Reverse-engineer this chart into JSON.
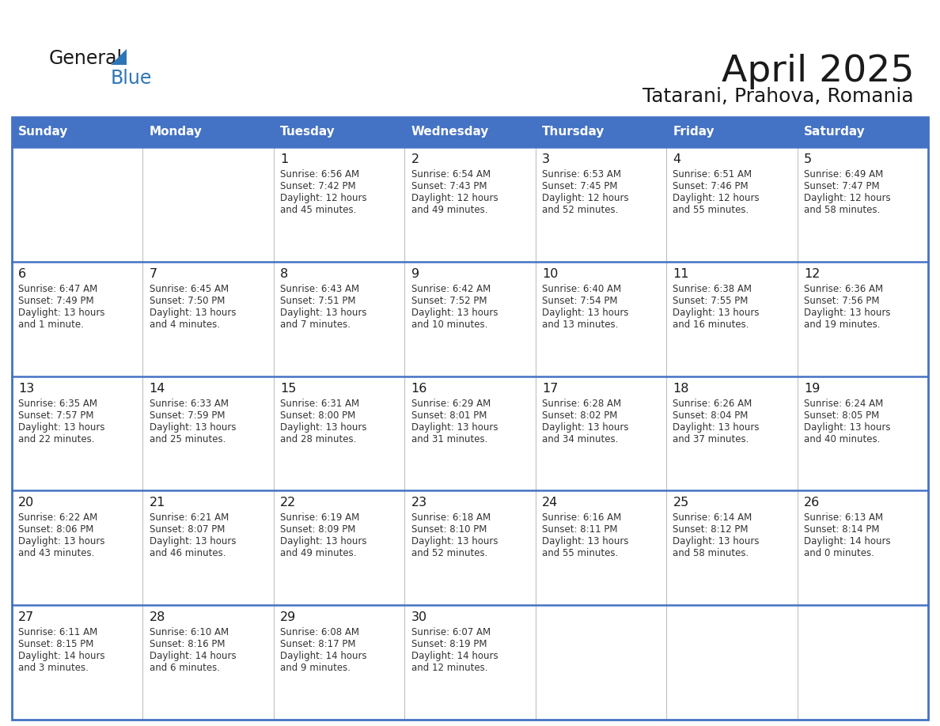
{
  "title": "April 2025",
  "subtitle": "Tatarani, Prahova, Romania",
  "days_of_week": [
    "Sunday",
    "Monday",
    "Tuesday",
    "Wednesday",
    "Thursday",
    "Friday",
    "Saturday"
  ],
  "header_bg_color": "#4472C4",
  "header_text_color": "#FFFFFF",
  "cell_bg_color": "#FFFFFF",
  "border_color": "#4472C4",
  "row_divider_color": "#4472C4",
  "title_color": "#1a1a1a",
  "subtitle_color": "#1a1a1a",
  "day_number_color": "#1a1a1a",
  "cell_text_color": "#333333",
  "logo_general_color": "#1a1a1a",
  "logo_blue_color": "#2E75B6",
  "weeks": [
    [
      {
        "day": null,
        "data": null
      },
      {
        "day": null,
        "data": null
      },
      {
        "day": 1,
        "data": {
          "sunrise": "6:56 AM",
          "sunset": "7:42 PM",
          "daylight_line1": "Daylight: 12 hours",
          "daylight_line2": "and 45 minutes."
        }
      },
      {
        "day": 2,
        "data": {
          "sunrise": "6:54 AM",
          "sunset": "7:43 PM",
          "daylight_line1": "Daylight: 12 hours",
          "daylight_line2": "and 49 minutes."
        }
      },
      {
        "day": 3,
        "data": {
          "sunrise": "6:53 AM",
          "sunset": "7:45 PM",
          "daylight_line1": "Daylight: 12 hours",
          "daylight_line2": "and 52 minutes."
        }
      },
      {
        "day": 4,
        "data": {
          "sunrise": "6:51 AM",
          "sunset": "7:46 PM",
          "daylight_line1": "Daylight: 12 hours",
          "daylight_line2": "and 55 minutes."
        }
      },
      {
        "day": 5,
        "data": {
          "sunrise": "6:49 AM",
          "sunset": "7:47 PM",
          "daylight_line1": "Daylight: 12 hours",
          "daylight_line2": "and 58 minutes."
        }
      }
    ],
    [
      {
        "day": 6,
        "data": {
          "sunrise": "6:47 AM",
          "sunset": "7:49 PM",
          "daylight_line1": "Daylight: 13 hours",
          "daylight_line2": "and 1 minute."
        }
      },
      {
        "day": 7,
        "data": {
          "sunrise": "6:45 AM",
          "sunset": "7:50 PM",
          "daylight_line1": "Daylight: 13 hours",
          "daylight_line2": "and 4 minutes."
        }
      },
      {
        "day": 8,
        "data": {
          "sunrise": "6:43 AM",
          "sunset": "7:51 PM",
          "daylight_line1": "Daylight: 13 hours",
          "daylight_line2": "and 7 minutes."
        }
      },
      {
        "day": 9,
        "data": {
          "sunrise": "6:42 AM",
          "sunset": "7:52 PM",
          "daylight_line1": "Daylight: 13 hours",
          "daylight_line2": "and 10 minutes."
        }
      },
      {
        "day": 10,
        "data": {
          "sunrise": "6:40 AM",
          "sunset": "7:54 PM",
          "daylight_line1": "Daylight: 13 hours",
          "daylight_line2": "and 13 minutes."
        }
      },
      {
        "day": 11,
        "data": {
          "sunrise": "6:38 AM",
          "sunset": "7:55 PM",
          "daylight_line1": "Daylight: 13 hours",
          "daylight_line2": "and 16 minutes."
        }
      },
      {
        "day": 12,
        "data": {
          "sunrise": "6:36 AM",
          "sunset": "7:56 PM",
          "daylight_line1": "Daylight: 13 hours",
          "daylight_line2": "and 19 minutes."
        }
      }
    ],
    [
      {
        "day": 13,
        "data": {
          "sunrise": "6:35 AM",
          "sunset": "7:57 PM",
          "daylight_line1": "Daylight: 13 hours",
          "daylight_line2": "and 22 minutes."
        }
      },
      {
        "day": 14,
        "data": {
          "sunrise": "6:33 AM",
          "sunset": "7:59 PM",
          "daylight_line1": "Daylight: 13 hours",
          "daylight_line2": "and 25 minutes."
        }
      },
      {
        "day": 15,
        "data": {
          "sunrise": "6:31 AM",
          "sunset": "8:00 PM",
          "daylight_line1": "Daylight: 13 hours",
          "daylight_line2": "and 28 minutes."
        }
      },
      {
        "day": 16,
        "data": {
          "sunrise": "6:29 AM",
          "sunset": "8:01 PM",
          "daylight_line1": "Daylight: 13 hours",
          "daylight_line2": "and 31 minutes."
        }
      },
      {
        "day": 17,
        "data": {
          "sunrise": "6:28 AM",
          "sunset": "8:02 PM",
          "daylight_line1": "Daylight: 13 hours",
          "daylight_line2": "and 34 minutes."
        }
      },
      {
        "day": 18,
        "data": {
          "sunrise": "6:26 AM",
          "sunset": "8:04 PM",
          "daylight_line1": "Daylight: 13 hours",
          "daylight_line2": "and 37 minutes."
        }
      },
      {
        "day": 19,
        "data": {
          "sunrise": "6:24 AM",
          "sunset": "8:05 PM",
          "daylight_line1": "Daylight: 13 hours",
          "daylight_line2": "and 40 minutes."
        }
      }
    ],
    [
      {
        "day": 20,
        "data": {
          "sunrise": "6:22 AM",
          "sunset": "8:06 PM",
          "daylight_line1": "Daylight: 13 hours",
          "daylight_line2": "and 43 minutes."
        }
      },
      {
        "day": 21,
        "data": {
          "sunrise": "6:21 AM",
          "sunset": "8:07 PM",
          "daylight_line1": "Daylight: 13 hours",
          "daylight_line2": "and 46 minutes."
        }
      },
      {
        "day": 22,
        "data": {
          "sunrise": "6:19 AM",
          "sunset": "8:09 PM",
          "daylight_line1": "Daylight: 13 hours",
          "daylight_line2": "and 49 minutes."
        }
      },
      {
        "day": 23,
        "data": {
          "sunrise": "6:18 AM",
          "sunset": "8:10 PM",
          "daylight_line1": "Daylight: 13 hours",
          "daylight_line2": "and 52 minutes."
        }
      },
      {
        "day": 24,
        "data": {
          "sunrise": "6:16 AM",
          "sunset": "8:11 PM",
          "daylight_line1": "Daylight: 13 hours",
          "daylight_line2": "and 55 minutes."
        }
      },
      {
        "day": 25,
        "data": {
          "sunrise": "6:14 AM",
          "sunset": "8:12 PM",
          "daylight_line1": "Daylight: 13 hours",
          "daylight_line2": "and 58 minutes."
        }
      },
      {
        "day": 26,
        "data": {
          "sunrise": "6:13 AM",
          "sunset": "8:14 PM",
          "daylight_line1": "Daylight: 14 hours",
          "daylight_line2": "and 0 minutes."
        }
      }
    ],
    [
      {
        "day": 27,
        "data": {
          "sunrise": "6:11 AM",
          "sunset": "8:15 PM",
          "daylight_line1": "Daylight: 14 hours",
          "daylight_line2": "and 3 minutes."
        }
      },
      {
        "day": 28,
        "data": {
          "sunrise": "6:10 AM",
          "sunset": "8:16 PM",
          "daylight_line1": "Daylight: 14 hours",
          "daylight_line2": "and 6 minutes."
        }
      },
      {
        "day": 29,
        "data": {
          "sunrise": "6:08 AM",
          "sunset": "8:17 PM",
          "daylight_line1": "Daylight: 14 hours",
          "daylight_line2": "and 9 minutes."
        }
      },
      {
        "day": 30,
        "data": {
          "sunrise": "6:07 AM",
          "sunset": "8:19 PM",
          "daylight_line1": "Daylight: 14 hours",
          "daylight_line2": "and 12 minutes."
        }
      },
      {
        "day": null,
        "data": null
      },
      {
        "day": null,
        "data": null
      },
      {
        "day": null,
        "data": null
      }
    ]
  ]
}
